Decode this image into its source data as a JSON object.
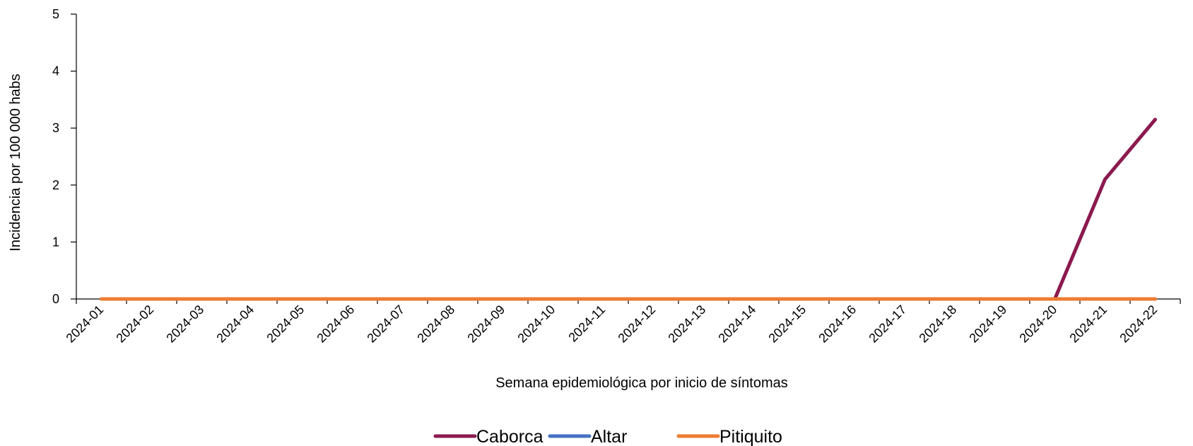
{
  "chart_data": {
    "type": "line",
    "title": "",
    "xlabel": "Semana epidemiológica por inicio de síntomas",
    "ylabel": "Incidencia por 100 000 habs",
    "ylim": [
      0,
      5
    ],
    "yticks": [
      0,
      1,
      2,
      3,
      4,
      5
    ],
    "grid": false,
    "legend_position": "bottom",
    "categories": [
      "2024-01",
      "2024-02",
      "2024-03",
      "2024-04",
      "2024-05",
      "2024-06",
      "2024-07",
      "2024-08",
      "2024-09",
      "2024-10",
      "2024-11",
      "2024-12",
      "2024-13",
      "2024-14",
      "2024-15",
      "2024-16",
      "2024-17",
      "2024-18",
      "2024-19",
      "2024-20",
      "2024-21",
      "2024-22"
    ],
    "series": [
      {
        "name": "Caborca",
        "color": "#8B1A4F",
        "values": [
          0,
          0,
          0,
          0,
          0,
          0,
          0,
          0,
          0,
          0,
          0,
          0,
          0,
          0,
          0,
          0,
          0,
          0,
          0,
          0,
          2.1,
          3.15
        ]
      },
      {
        "name": "Altar",
        "color": "#4472C4",
        "values": [
          0,
          0,
          0,
          0,
          0,
          0,
          0,
          0,
          0,
          0,
          0,
          0,
          0,
          0,
          0,
          0,
          0,
          0,
          0,
          0,
          0,
          0
        ]
      },
      {
        "name": "Pitiquito",
        "color": "#ED7D31",
        "values": [
          0,
          0,
          0,
          0,
          0,
          0,
          0,
          0,
          0,
          0,
          0,
          0,
          0,
          0,
          0,
          0,
          0,
          0,
          0,
          0,
          0,
          0
        ]
      }
    ]
  }
}
